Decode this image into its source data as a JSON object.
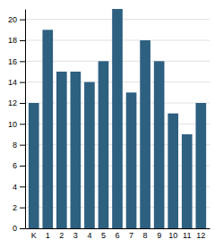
{
  "chart_data": {
    "type": "bar",
    "categories": [
      "K",
      "1",
      "2",
      "3",
      "4",
      "5",
      "6",
      "7",
      "8",
      "9",
      "10",
      "11",
      "12"
    ],
    "values": [
      12,
      19,
      15,
      15,
      14,
      16,
      21,
      13,
      18,
      16,
      11,
      9,
      12
    ],
    "color": "#2e6080",
    "ylim": [
      0,
      21
    ],
    "yticks": [
      0,
      2,
      4,
      6,
      8,
      10,
      12,
      14,
      16,
      18,
      20
    ],
    "grid": true
  }
}
